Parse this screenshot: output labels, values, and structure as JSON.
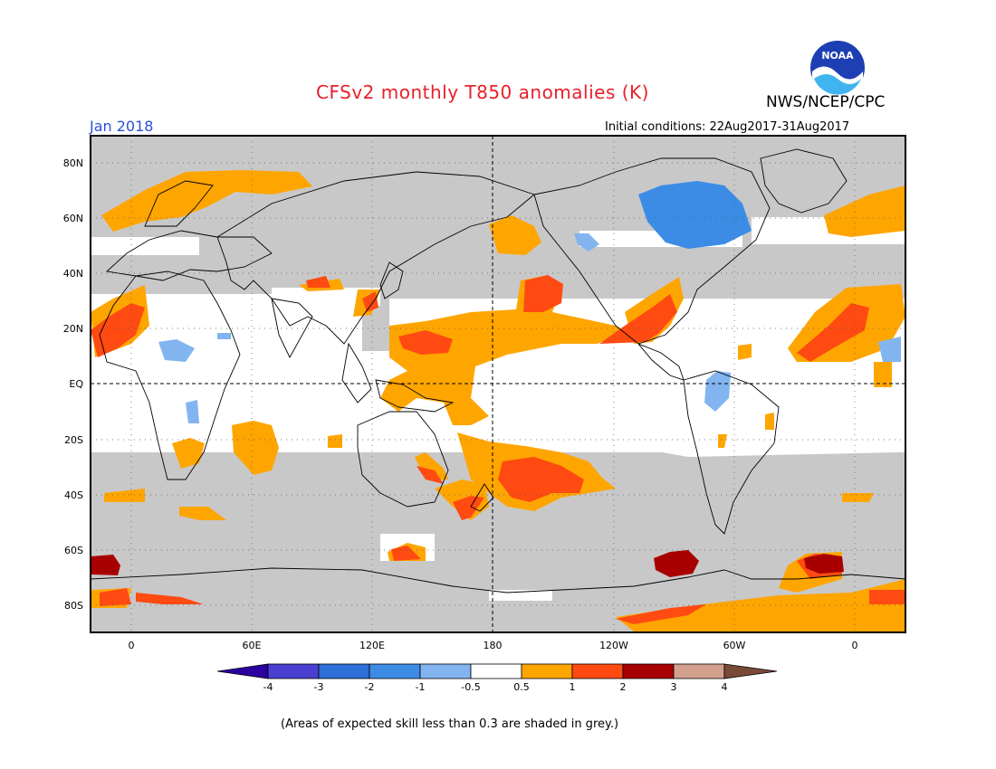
{
  "header": {
    "title": "CFSv2 monthly T850 anomalies (K)",
    "agency": "NWS/NCEP/CPC",
    "logo_text": "NOAA",
    "period": "Jan 2018",
    "initial_conditions": "Initial conditions: 22Aug2017-31Aug2017"
  },
  "map": {
    "lat_labels": [
      "80N",
      "60N",
      "40N",
      "20N",
      "EQ",
      "20S",
      "40S",
      "60S",
      "80S"
    ],
    "lon_labels": [
      "0",
      "60E",
      "120E",
      "180",
      "120W",
      "60W",
      "0"
    ],
    "colors": {
      "skill_grey": "#c8c8c8",
      "neutral": "#ffffff",
      "neg1": "#82b4f0",
      "neg2": "#3c8ce6",
      "pos1": "#ffa500",
      "pos2": "#ff4a12",
      "pos3": "#a80000"
    }
  },
  "colorbar": {
    "tick_labels": [
      "-4",
      "-3",
      "-2",
      "-1",
      "-0.5",
      "0.5",
      "1",
      "2",
      "3",
      "4"
    ],
    "colors": [
      "#2c00a0",
      "#4a3fd0",
      "#2e6fd8",
      "#3c8ce6",
      "#82b4f0",
      "#ffffff",
      "#ffa500",
      "#ff4a12",
      "#a80000",
      "#d2a08c",
      "#7a4a38"
    ]
  },
  "footnote": "(Areas of expected skill less than 0.3 are shaded in grey.)"
}
